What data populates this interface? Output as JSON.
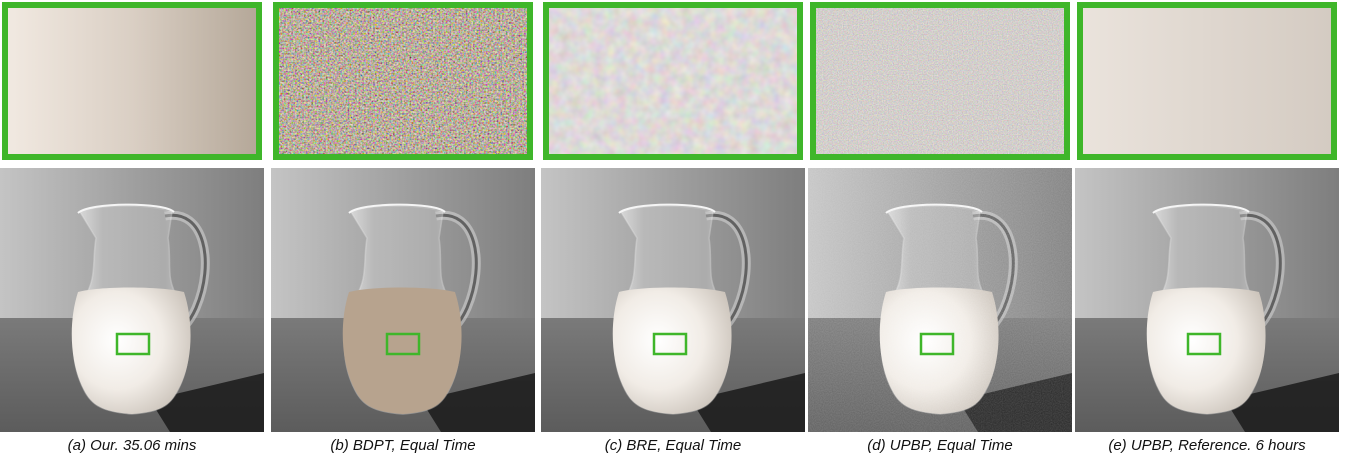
{
  "figure": {
    "panels": [
      {
        "id": "a",
        "caption": "(a) Our. 35.06 mins",
        "noise": "none"
      },
      {
        "id": "b",
        "caption": "(b) BDPT, Equal Time",
        "noise": "heavy-sand"
      },
      {
        "id": "c",
        "caption": "(c) BRE, Equal Time",
        "noise": "blurry"
      },
      {
        "id": "d",
        "caption": "(d) UPBP, Equal Time",
        "noise": "fine-speckle"
      },
      {
        "id": "e",
        "caption": "(e) UPBP, Reference. 6 hours",
        "noise": "none"
      }
    ],
    "colors": {
      "crop_border": "#3fb62a",
      "milk": "#f4efe9",
      "sand": "#b9a48f",
      "background_wall": "#a9a9a9",
      "floor": "#6d6d6d"
    }
  }
}
